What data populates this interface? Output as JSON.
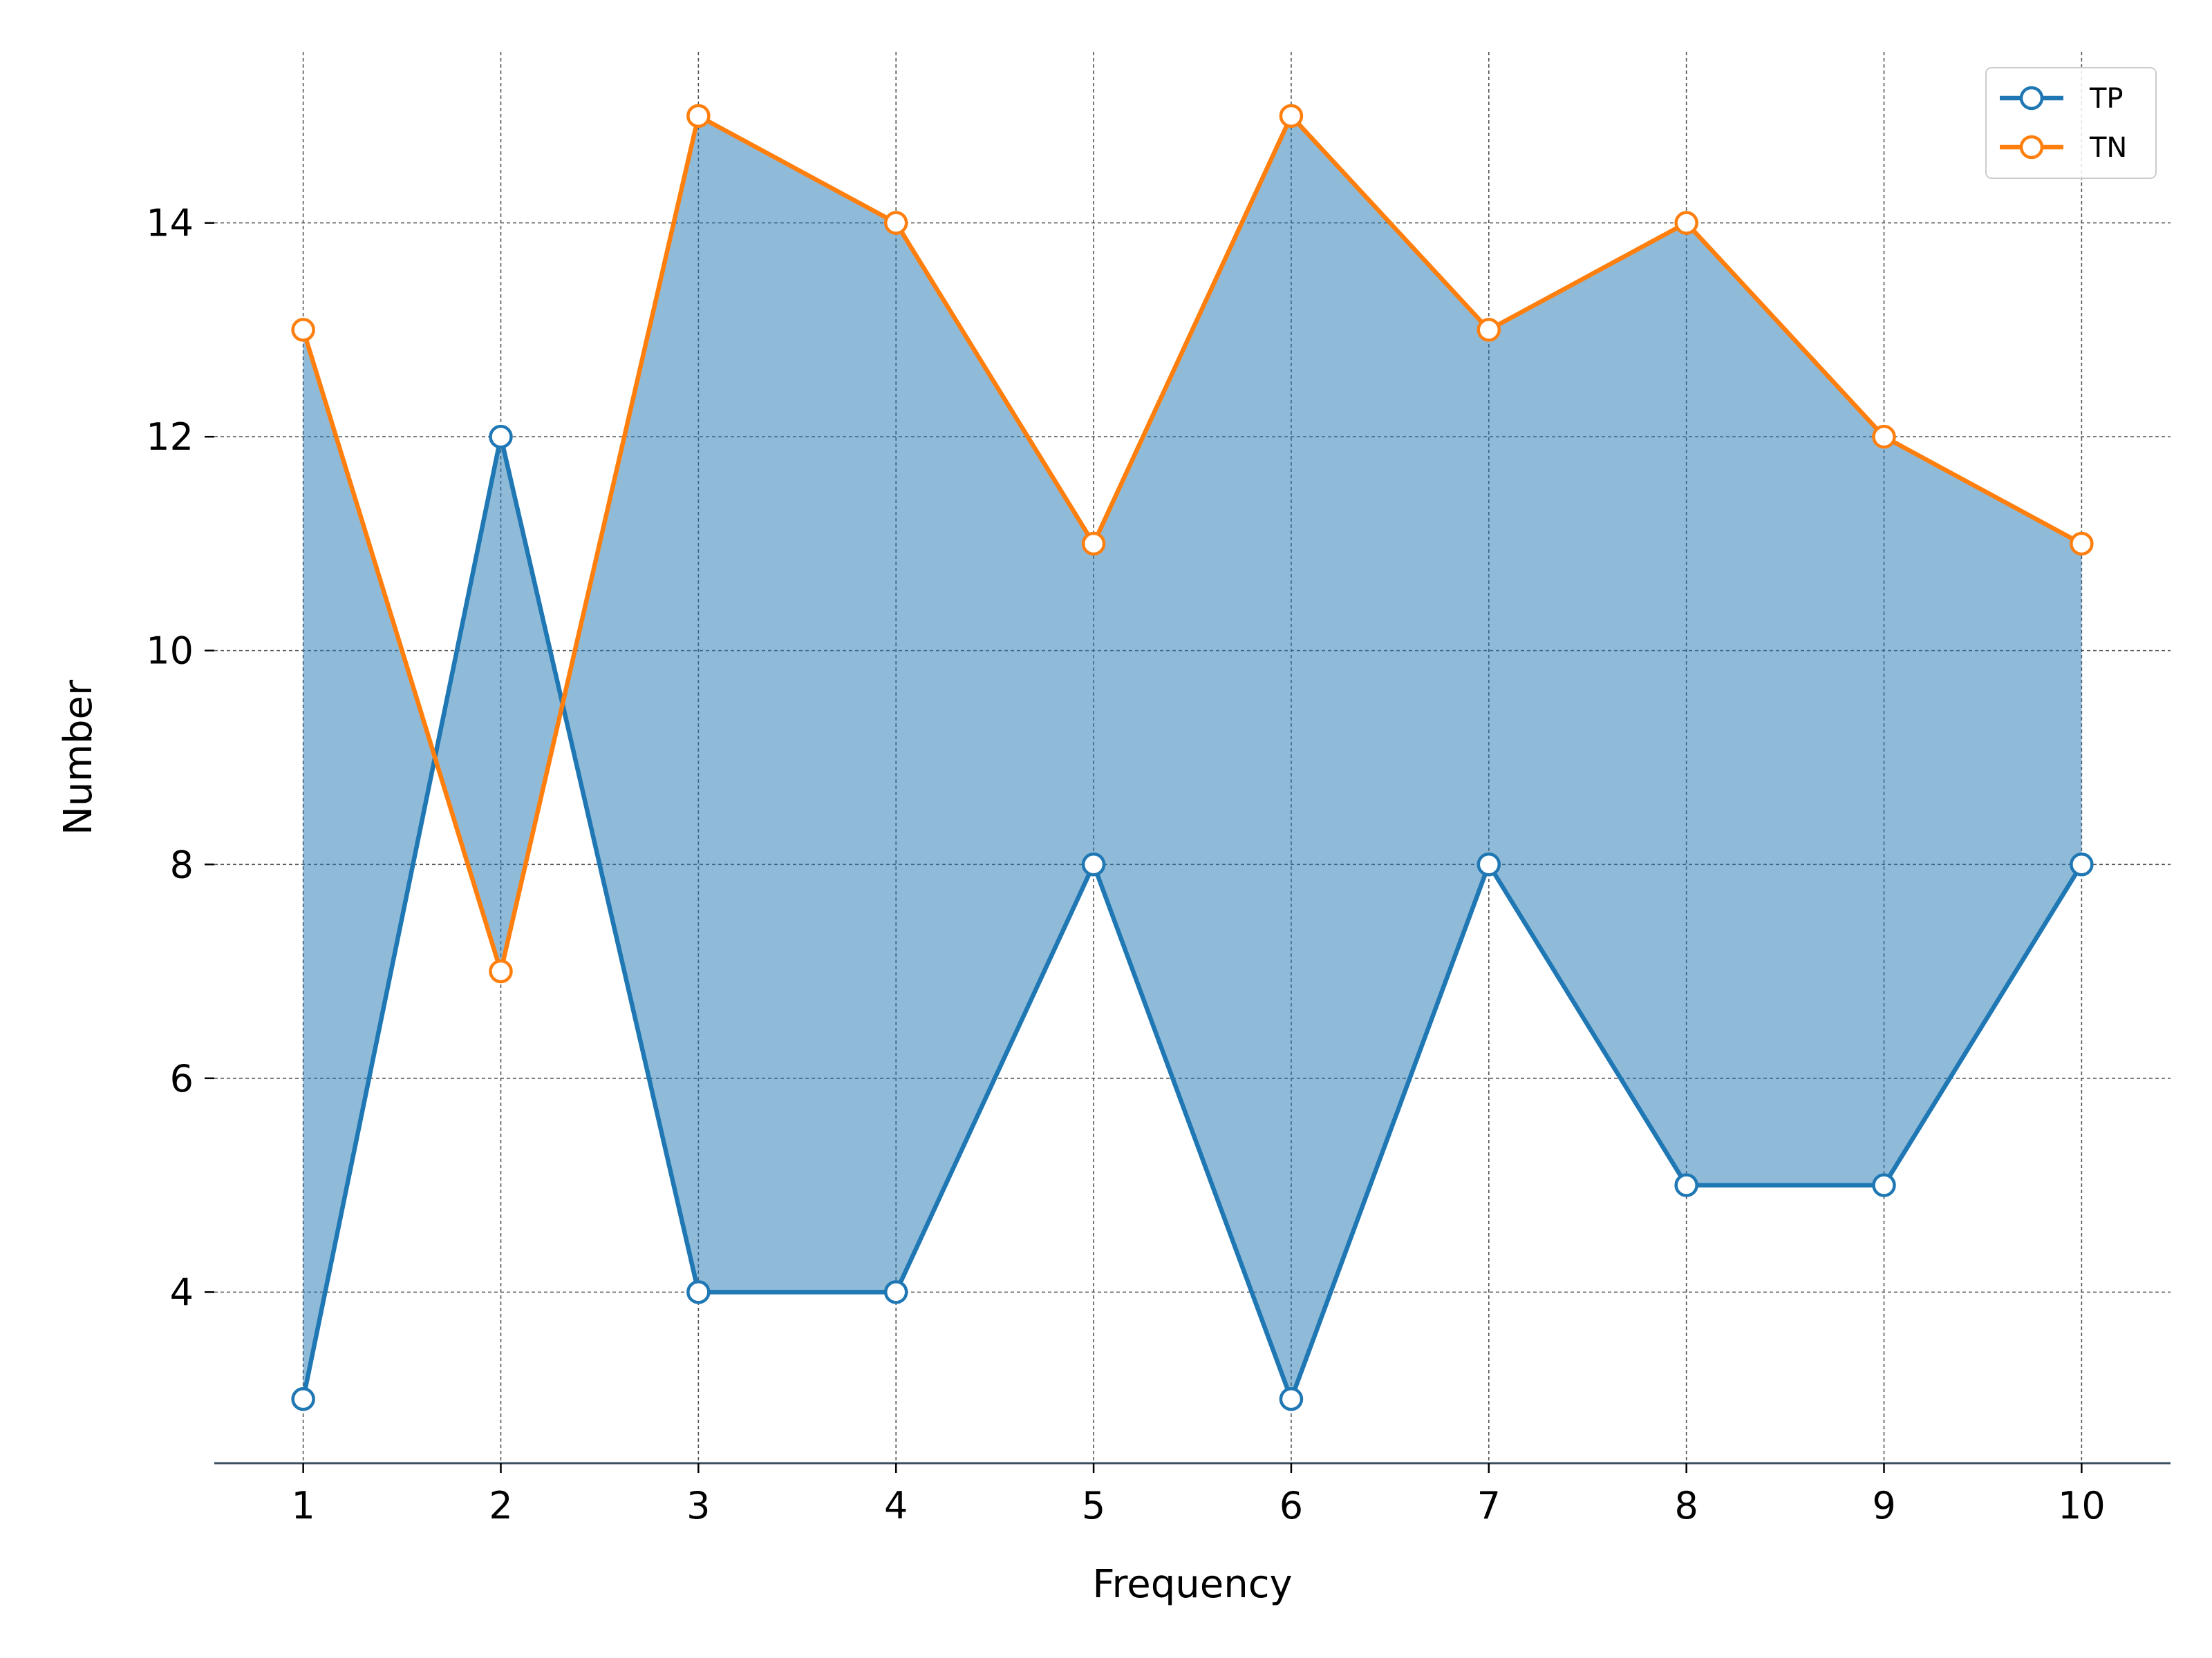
{
  "chart_data": {
    "type": "line",
    "title": "",
    "xlabel": "Frequency",
    "ylabel": "Number",
    "x": [
      1,
      2,
      3,
      4,
      5,
      6,
      7,
      8,
      9,
      10
    ],
    "series": [
      {
        "name": "TP",
        "values": [
          3,
          12,
          4,
          4,
          8,
          3,
          8,
          5,
          5,
          8
        ],
        "color": "#1f77b4"
      },
      {
        "name": "TN",
        "values": [
          13,
          7,
          15,
          14,
          11,
          15,
          13,
          14,
          12,
          11
        ],
        "color": "#ff7f0e"
      }
    ],
    "fill_between": {
      "color": "#1f77b4",
      "opacity": 0.5
    },
    "xticks": [
      1,
      2,
      3,
      4,
      5,
      6,
      7,
      8,
      9,
      10
    ],
    "yticks": [
      4,
      6,
      8,
      10,
      12,
      14
    ],
    "xlim": [
      0.55,
      10.45
    ],
    "ylim": [
      2.4,
      15.6
    ],
    "grid": true,
    "legend_position": "top-right",
    "marker": "hollow-circle"
  }
}
